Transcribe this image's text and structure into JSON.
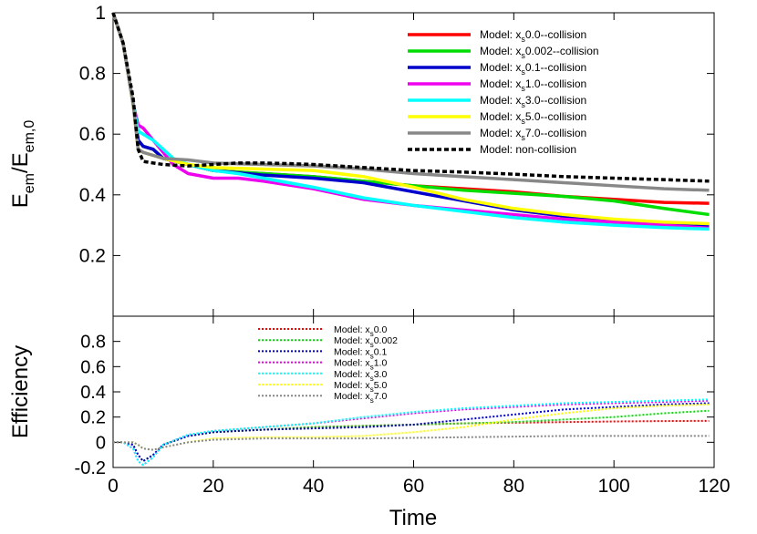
{
  "chart_data": [
    {
      "type": "line",
      "panel": "top",
      "ylabel": "E_em/E_em,0",
      "xlabel": "",
      "xlim": [
        0,
        120
      ],
      "ylim": [
        0,
        1
      ],
      "xticks": [
        0,
        20,
        40,
        60,
        80,
        100,
        120
      ],
      "yticks": [
        0.2,
        0.4,
        0.6,
        0.8,
        1
      ],
      "ytick_labels": [
        "0.2",
        "0.4",
        "0.6",
        "0.8",
        "1"
      ],
      "grid": false,
      "legend_position": "top-right",
      "series": [
        {
          "name": "Model: x_s0.0--collision",
          "label_prefix": "Model: x",
          "label_sub": "s",
          "label_suffix": "0.0--collision",
          "color": "#ff0000",
          "style": "solid",
          "x": [
            0,
            2,
            4,
            5,
            6,
            8,
            10,
            15,
            20,
            30,
            40,
            50,
            60,
            70,
            80,
            90,
            100,
            110,
            119
          ],
          "y": [
            1.0,
            0.9,
            0.7,
            0.58,
            0.56,
            0.55,
            0.52,
            0.5,
            0.48,
            0.47,
            0.46,
            0.445,
            0.43,
            0.42,
            0.41,
            0.395,
            0.385,
            0.375,
            0.372
          ]
        },
        {
          "name": "Model: x_s0.002--collision",
          "label_prefix": "Model: x",
          "label_sub": "s",
          "label_suffix": "0.002--collision",
          "color": "#00dd00",
          "style": "solid",
          "x": [
            0,
            2,
            4,
            5,
            6,
            8,
            10,
            15,
            20,
            30,
            40,
            50,
            60,
            70,
            80,
            90,
            100,
            110,
            119
          ],
          "y": [
            1.0,
            0.9,
            0.7,
            0.58,
            0.56,
            0.55,
            0.52,
            0.5,
            0.48,
            0.47,
            0.46,
            0.445,
            0.43,
            0.415,
            0.405,
            0.395,
            0.38,
            0.355,
            0.335
          ]
        },
        {
          "name": "Model: x_s0.1--collision",
          "label_prefix": "Model: x",
          "label_sub": "s",
          "label_suffix": "0.1--collision",
          "color": "#0000cc",
          "style": "solid",
          "x": [
            0,
            2,
            4,
            5,
            6,
            8,
            10,
            15,
            20,
            30,
            40,
            50,
            60,
            70,
            80,
            90,
            100,
            110,
            119
          ],
          "y": [
            1.0,
            0.9,
            0.7,
            0.58,
            0.56,
            0.55,
            0.52,
            0.5,
            0.48,
            0.465,
            0.455,
            0.44,
            0.41,
            0.38,
            0.35,
            0.33,
            0.315,
            0.305,
            0.298
          ]
        },
        {
          "name": "Model: x_s1.0--collision",
          "label_prefix": "Model: x",
          "label_sub": "s",
          "label_suffix": "1.0--collision",
          "color": "#ee00ee",
          "style": "solid",
          "x": [
            0,
            2,
            4,
            5,
            6,
            8,
            10,
            12,
            15,
            20,
            25,
            30,
            40,
            50,
            60,
            70,
            80,
            90,
            100,
            110,
            119
          ],
          "y": [
            1.0,
            0.9,
            0.7,
            0.63,
            0.62,
            0.58,
            0.54,
            0.5,
            0.47,
            0.455,
            0.455,
            0.445,
            0.42,
            0.385,
            0.365,
            0.35,
            0.335,
            0.32,
            0.31,
            0.3,
            0.29
          ]
        },
        {
          "name": "Model: x_s3.0--collision",
          "label_prefix": "Model: x",
          "label_sub": "s",
          "label_suffix": "3.0--collision",
          "color": "#00ffff",
          "style": "solid",
          "x": [
            0,
            2,
            4,
            5,
            6,
            8,
            10,
            12,
            15,
            20,
            25,
            30,
            40,
            50,
            60,
            70,
            80,
            90,
            100,
            110,
            119
          ],
          "y": [
            1.0,
            0.9,
            0.7,
            0.61,
            0.6,
            0.58,
            0.55,
            0.52,
            0.5,
            0.48,
            0.47,
            0.455,
            0.425,
            0.39,
            0.365,
            0.345,
            0.325,
            0.31,
            0.3,
            0.292,
            0.287
          ]
        },
        {
          "name": "Model: x_s5.0--collision",
          "label_prefix": "Model: x",
          "label_sub": "s",
          "label_suffix": "5.0--collision",
          "color": "#ffff00",
          "style": "solid",
          "x": [
            0,
            2,
            4,
            5,
            6,
            8,
            10,
            15,
            20,
            30,
            40,
            50,
            60,
            70,
            80,
            90,
            100,
            110,
            119
          ],
          "y": [
            1.0,
            0.9,
            0.7,
            0.55,
            0.54,
            0.53,
            0.52,
            0.5,
            0.49,
            0.485,
            0.48,
            0.46,
            0.425,
            0.385,
            0.355,
            0.335,
            0.32,
            0.31,
            0.305
          ]
        },
        {
          "name": "Model: x_s7.0--collision",
          "label_prefix": "Model: x",
          "label_sub": "s",
          "label_suffix": "7.0--collision",
          "color": "#888888",
          "style": "solid",
          "x": [
            0,
            2,
            4,
            5,
            6,
            8,
            10,
            15,
            20,
            30,
            40,
            50,
            60,
            70,
            80,
            90,
            100,
            110,
            119
          ],
          "y": [
            1.0,
            0.9,
            0.7,
            0.55,
            0.54,
            0.53,
            0.52,
            0.515,
            0.505,
            0.5,
            0.495,
            0.485,
            0.47,
            0.46,
            0.45,
            0.44,
            0.43,
            0.42,
            0.415
          ]
        },
        {
          "name": "Model: non-collision",
          "label_prefix": "Model: non-collision",
          "label_sub": "",
          "label_suffix": "",
          "color": "#000000",
          "style": "dashed",
          "x": [
            0,
            2,
            4,
            5,
            6,
            8,
            10,
            15,
            20,
            25,
            30,
            35,
            40,
            50,
            60,
            70,
            80,
            90,
            100,
            110,
            119
          ],
          "y": [
            1.0,
            0.9,
            0.72,
            0.55,
            0.51,
            0.505,
            0.5,
            0.495,
            0.5,
            0.505,
            0.505,
            0.503,
            0.5,
            0.49,
            0.48,
            0.475,
            0.468,
            0.46,
            0.455,
            0.45,
            0.445
          ]
        }
      ]
    },
    {
      "type": "line",
      "panel": "bottom",
      "xlabel": "Time",
      "ylabel": "Efficiency",
      "xlim": [
        0,
        120
      ],
      "ylim": [
        -0.2,
        1
      ],
      "xticks": [
        0,
        20,
        40,
        60,
        80,
        100,
        120
      ],
      "yticks": [
        -0.2,
        0,
        0.2,
        0.4,
        0.6,
        0.8
      ],
      "ytick_labels": [
        "-0.2",
        "0",
        "0.2",
        "0.4",
        "0.6",
        "0.8"
      ],
      "grid": false,
      "legend_position": "top-center",
      "series": [
        {
          "name": "Model: x_s0.0",
          "label_prefix": "Model: x",
          "label_sub": "s",
          "label_suffix": "0.0",
          "color": "#ff0000",
          "style": "dotted",
          "x": [
            0,
            2,
            4,
            5,
            6,
            8,
            10,
            15,
            20,
            30,
            40,
            50,
            60,
            70,
            80,
            90,
            100,
            110,
            119
          ],
          "y": [
            0,
            0,
            -0.02,
            -0.1,
            -0.15,
            -0.1,
            -0.02,
            0.05,
            0.08,
            0.1,
            0.12,
            0.13,
            0.14,
            0.15,
            0.155,
            0.16,
            0.165,
            0.168,
            0.17
          ]
        },
        {
          "name": "Model: x_s0.002",
          "label_prefix": "Model: x",
          "label_sub": "s",
          "label_suffix": "0.002",
          "color": "#00dd00",
          "style": "dotted",
          "x": [
            0,
            2,
            4,
            5,
            6,
            8,
            10,
            15,
            20,
            30,
            40,
            50,
            60,
            70,
            80,
            90,
            100,
            110,
            119
          ],
          "y": [
            0,
            0,
            -0.02,
            -0.1,
            -0.15,
            -0.1,
            -0.02,
            0.05,
            0.08,
            0.1,
            0.12,
            0.13,
            0.14,
            0.15,
            0.16,
            0.18,
            0.2,
            0.23,
            0.25
          ]
        },
        {
          "name": "Model: x_s0.1",
          "label_prefix": "Model: x",
          "label_sub": "s",
          "label_suffix": "0.1",
          "color": "#0000cc",
          "style": "dotted",
          "x": [
            0,
            2,
            4,
            5,
            6,
            8,
            10,
            15,
            20,
            30,
            40,
            50,
            60,
            70,
            80,
            90,
            100,
            110,
            119
          ],
          "y": [
            0,
            0,
            -0.02,
            -0.1,
            -0.15,
            -0.1,
            -0.02,
            0.05,
            0.08,
            0.1,
            0.11,
            0.12,
            0.14,
            0.18,
            0.22,
            0.26,
            0.28,
            0.3,
            0.31
          ]
        },
        {
          "name": "Model: x_s1.0",
          "label_prefix": "Model: x",
          "label_sub": "s",
          "label_suffix": "1.0",
          "color": "#ee00ee",
          "style": "dotted",
          "x": [
            0,
            2,
            4,
            5,
            6,
            8,
            10,
            15,
            20,
            30,
            40,
            50,
            60,
            70,
            80,
            90,
            100,
            110,
            119
          ],
          "y": [
            0,
            0,
            -0.05,
            -0.15,
            -0.18,
            -0.12,
            -0.02,
            0.06,
            0.09,
            0.12,
            0.15,
            0.19,
            0.23,
            0.26,
            0.28,
            0.3,
            0.31,
            0.32,
            0.33
          ]
        },
        {
          "name": "Model: x_s3.0",
          "label_prefix": "Model: x",
          "label_sub": "s",
          "label_suffix": "3.0",
          "color": "#00ffff",
          "style": "dotted",
          "x": [
            0,
            2,
            4,
            5,
            6,
            8,
            10,
            15,
            20,
            30,
            40,
            50,
            60,
            70,
            80,
            90,
            100,
            110,
            119
          ],
          "y": [
            0,
            0,
            -0.05,
            -0.15,
            -0.18,
            -0.12,
            -0.02,
            0.06,
            0.09,
            0.12,
            0.15,
            0.2,
            0.24,
            0.27,
            0.29,
            0.31,
            0.32,
            0.33,
            0.34
          ]
        },
        {
          "name": "Model: x_s5.0",
          "label_prefix": "Model: x",
          "label_sub": "s",
          "label_suffix": "5.0",
          "color": "#ffff00",
          "style": "dotted",
          "x": [
            0,
            2,
            4,
            5,
            6,
            8,
            10,
            15,
            20,
            30,
            40,
            50,
            60,
            70,
            80,
            90,
            100,
            110,
            119
          ],
          "y": [
            0,
            0,
            0,
            -0.02,
            -0.05,
            -0.06,
            -0.04,
            0.0,
            0.03,
            0.04,
            0.04,
            0.05,
            0.08,
            0.12,
            0.18,
            0.23,
            0.27,
            0.29,
            0.3
          ]
        },
        {
          "name": "Model: x_s7.0",
          "label_prefix": "Model: x",
          "label_sub": "s",
          "label_suffix": "7.0",
          "color": "#888888",
          "style": "dotted",
          "x": [
            0,
            2,
            4,
            5,
            6,
            8,
            10,
            15,
            20,
            30,
            40,
            50,
            60,
            70,
            80,
            90,
            100,
            110,
            119
          ],
          "y": [
            0,
            0,
            0,
            -0.02,
            -0.05,
            -0.06,
            -0.04,
            0.0,
            0.02,
            0.03,
            0.03,
            0.03,
            0.035,
            0.04,
            0.045,
            0.05,
            0.05,
            0.05,
            0.05
          ]
        }
      ]
    }
  ]
}
